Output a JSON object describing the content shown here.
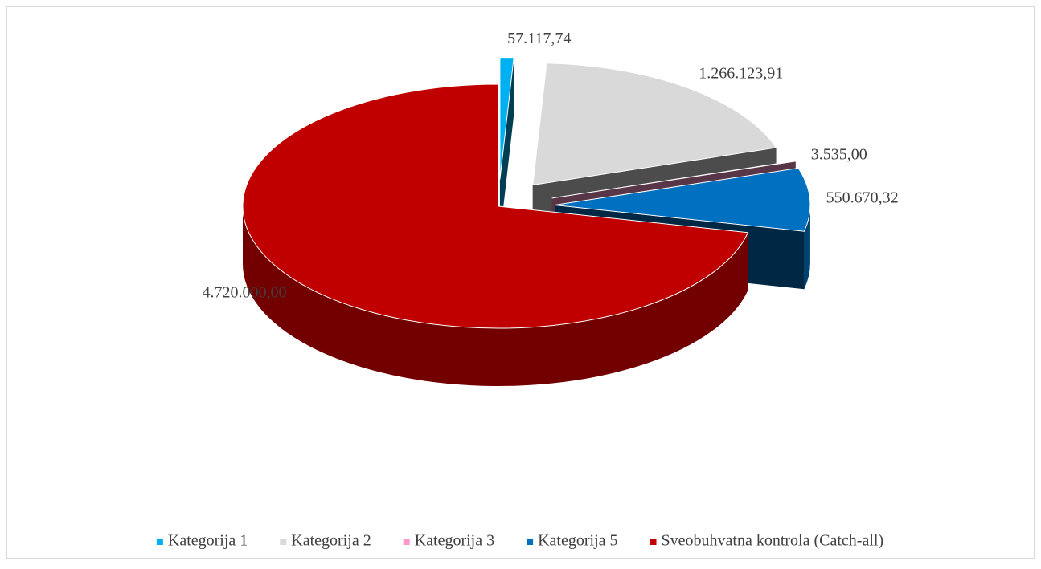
{
  "chart_data": {
    "type": "pie3d",
    "categories": [
      "Kategorija 1",
      "Kategorija 2",
      "Kategorija 3",
      "Kategorija 5",
      "Sveobuhvatna kontrola (Catch-all)"
    ],
    "values": [
      57117.74,
      1266123.91,
      3535,
      550670.32,
      4720000
    ],
    "value_labels": [
      "57.117,74",
      "1.266.123,91",
      "3.535,00",
      "550.670,32",
      "4.720.000,00"
    ],
    "colors": [
      "#00b0f0",
      "#d9d9d9",
      "#ff99cc",
      "#0070c0",
      "#c00000"
    ],
    "legend": "bottom"
  }
}
